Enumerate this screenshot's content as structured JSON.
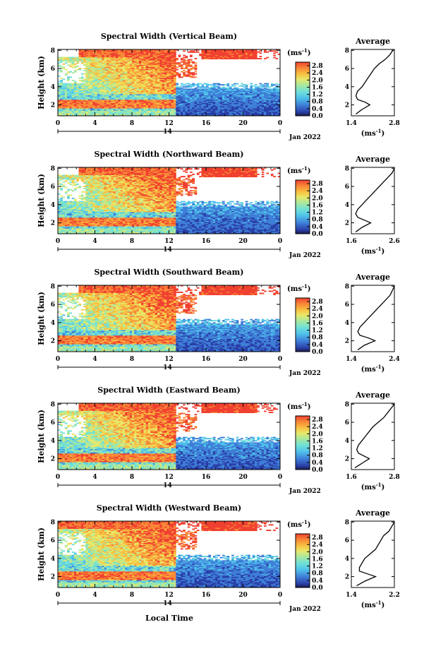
{
  "figure": {
    "xlabel": "Local Time",
    "ylabel": "Height (km)",
    "day_label": "14",
    "date_label": "Jan 2022",
    "colorbar_unit": "(ms",
    "colorbar_unit_exp": "-1",
    "colorbar_unit_close": ")",
    "profile_title": "Average",
    "profile_unit": "(ms",
    "profile_unit_exp": "-1",
    "profile_unit_close": ")"
  },
  "colors": {
    "scale": [
      "#1a1a4a",
      "#2a3fa8",
      "#3f7fd8",
      "#4fc0ea",
      "#6fe0d8",
      "#a8e8a0",
      "#e8e86a",
      "#f8c040",
      "#f88838",
      "#f04030"
    ]
  },
  "chart_data": [
    {
      "type": "heatmap",
      "title": "Spectral Width (Vertical Beam)",
      "xticks": [
        "0",
        "4",
        "8",
        "12",
        "16",
        "20",
        "0"
      ],
      "yticks": [
        "2",
        "4",
        "6",
        "8"
      ],
      "ylim": [
        0.8,
        8.1
      ],
      "xlim": [
        0,
        24
      ],
      "colorbar_ticks": [
        "0.0",
        "0.4",
        "0.8",
        "1.2",
        "1.6",
        "2.0",
        "2.4",
        "2.8"
      ],
      "colorbar_range": [
        0.0,
        3.0
      ],
      "profile": {
        "xticks": [
          "1.4",
          "2.8"
        ],
        "xlim": [
          1.4,
          2.8
        ],
        "yticks": [
          "2",
          "4",
          "6",
          "8"
        ],
        "heights": [
          1.0,
          1.5,
          2.0,
          2.3,
          2.6,
          3.0,
          3.5,
          4.0,
          4.5,
          5.0,
          5.5,
          6.0,
          6.5,
          7.0,
          7.5,
          8.0
        ],
        "values": [
          1.55,
          1.75,
          2.0,
          1.85,
          1.6,
          1.55,
          1.6,
          1.75,
          1.85,
          1.95,
          2.05,
          2.15,
          2.3,
          2.5,
          2.65,
          2.75
        ]
      }
    },
    {
      "type": "heatmap",
      "title": "Spectral Width (Northward Beam)",
      "xticks": [
        "0",
        "4",
        "8",
        "12",
        "16",
        "20",
        "0"
      ],
      "yticks": [
        "2",
        "4",
        "6",
        "8"
      ],
      "ylim": [
        0.8,
        8.1
      ],
      "xlim": [
        0,
        24
      ],
      "colorbar_ticks": [
        "0.0",
        "0.4",
        "0.8",
        "1.2",
        "1.6",
        "2.0",
        "2.4",
        "2.8"
      ],
      "colorbar_range": [
        0.0,
        3.0
      ],
      "profile": {
        "xticks": [
          "1.6",
          "2.6"
        ],
        "xlim": [
          1.6,
          2.6
        ],
        "yticks": [
          "2",
          "4",
          "6",
          "8"
        ],
        "heights": [
          1.0,
          1.5,
          2.0,
          2.3,
          2.6,
          3.0,
          3.5,
          4.0,
          4.5,
          5.0,
          5.5,
          6.0,
          6.5,
          7.0,
          7.5,
          8.0
        ],
        "values": [
          1.7,
          1.85,
          2.05,
          1.9,
          1.75,
          1.7,
          1.75,
          1.85,
          1.95,
          2.05,
          2.15,
          2.25,
          2.35,
          2.45,
          2.55,
          2.6
        ]
      }
    },
    {
      "type": "heatmap",
      "title": "Spectral Width (Southward Beam)",
      "xticks": [
        "0",
        "4",
        "8",
        "12",
        "16",
        "20",
        "0"
      ],
      "yticks": [
        "2",
        "4",
        "6",
        "8"
      ],
      "ylim": [
        0.8,
        8.1
      ],
      "xlim": [
        0,
        24
      ],
      "colorbar_ticks": [
        "0.0",
        "0.4",
        "0.8",
        "1.2",
        "1.6",
        "2.0",
        "2.4",
        "2.8"
      ],
      "colorbar_range": [
        0.0,
        3.0
      ],
      "profile": {
        "xticks": [
          "1.4",
          "2.4"
        ],
        "xlim": [
          1.4,
          2.4
        ],
        "yticks": [
          "2",
          "4",
          "6",
          "8"
        ],
        "heights": [
          1.0,
          1.5,
          2.0,
          2.3,
          2.6,
          3.0,
          3.5,
          4.0,
          4.5,
          5.0,
          5.5,
          6.0,
          6.5,
          7.0,
          7.5,
          8.0
        ],
        "values": [
          1.55,
          1.7,
          1.95,
          1.8,
          1.6,
          1.55,
          1.6,
          1.7,
          1.8,
          1.9,
          2.0,
          2.1,
          2.2,
          2.3,
          2.35,
          2.4
        ]
      }
    },
    {
      "type": "heatmap",
      "title": "Spectral Width (Eastward Beam)",
      "xticks": [
        "0",
        "4",
        "8",
        "12",
        "16",
        "20",
        "0"
      ],
      "yticks": [
        "2",
        "4",
        "6",
        "8"
      ],
      "ylim": [
        0.8,
        8.1
      ],
      "xlim": [
        0,
        24
      ],
      "colorbar_ticks": [
        "0.0",
        "0.4",
        "0.8",
        "1.2",
        "1.6",
        "2.0",
        "2.4",
        "2.8"
      ],
      "colorbar_range": [
        0.0,
        3.0
      ],
      "profile": {
        "xticks": [
          "1.6",
          "2.8"
        ],
        "xlim": [
          1.6,
          2.8
        ],
        "yticks": [
          "2",
          "4",
          "6",
          "8"
        ],
        "heights": [
          1.0,
          1.5,
          2.0,
          2.3,
          2.6,
          3.0,
          3.5,
          4.0,
          4.5,
          5.0,
          5.5,
          6.0,
          6.5,
          7.0,
          7.5,
          8.0
        ],
        "values": [
          1.7,
          1.9,
          2.1,
          1.95,
          1.8,
          1.75,
          1.8,
          1.9,
          2.0,
          2.1,
          2.2,
          2.35,
          2.5,
          2.6,
          2.7,
          2.8
        ]
      }
    },
    {
      "type": "heatmap",
      "title": "Spectral Width (Westward Beam)",
      "xticks": [
        "0",
        "4",
        "8",
        "12",
        "16",
        "20",
        "0"
      ],
      "yticks": [
        "2",
        "4",
        "6",
        "8"
      ],
      "ylim": [
        0.8,
        8.1
      ],
      "xlim": [
        0,
        24
      ],
      "colorbar_ticks": [
        "0.0",
        "0.4",
        "0.8",
        "1.2",
        "1.6",
        "2.0",
        "2.4",
        "2.8"
      ],
      "colorbar_range": [
        0.0,
        3.0
      ],
      "profile": {
        "xticks": [
          "1.4",
          "2.2"
        ],
        "xlim": [
          1.4,
          2.2
        ],
        "yticks": [
          "2",
          "4",
          "6",
          "8"
        ],
        "heights": [
          1.0,
          1.5,
          2.0,
          2.3,
          2.6,
          3.0,
          3.5,
          4.0,
          4.5,
          5.0,
          5.5,
          6.0,
          6.5,
          7.0,
          7.5,
          8.0
        ],
        "values": [
          1.5,
          1.65,
          1.85,
          1.7,
          1.55,
          1.55,
          1.6,
          1.65,
          1.75,
          1.85,
          1.9,
          1.95,
          2.0,
          2.1,
          2.15,
          2.2
        ]
      }
    }
  ]
}
